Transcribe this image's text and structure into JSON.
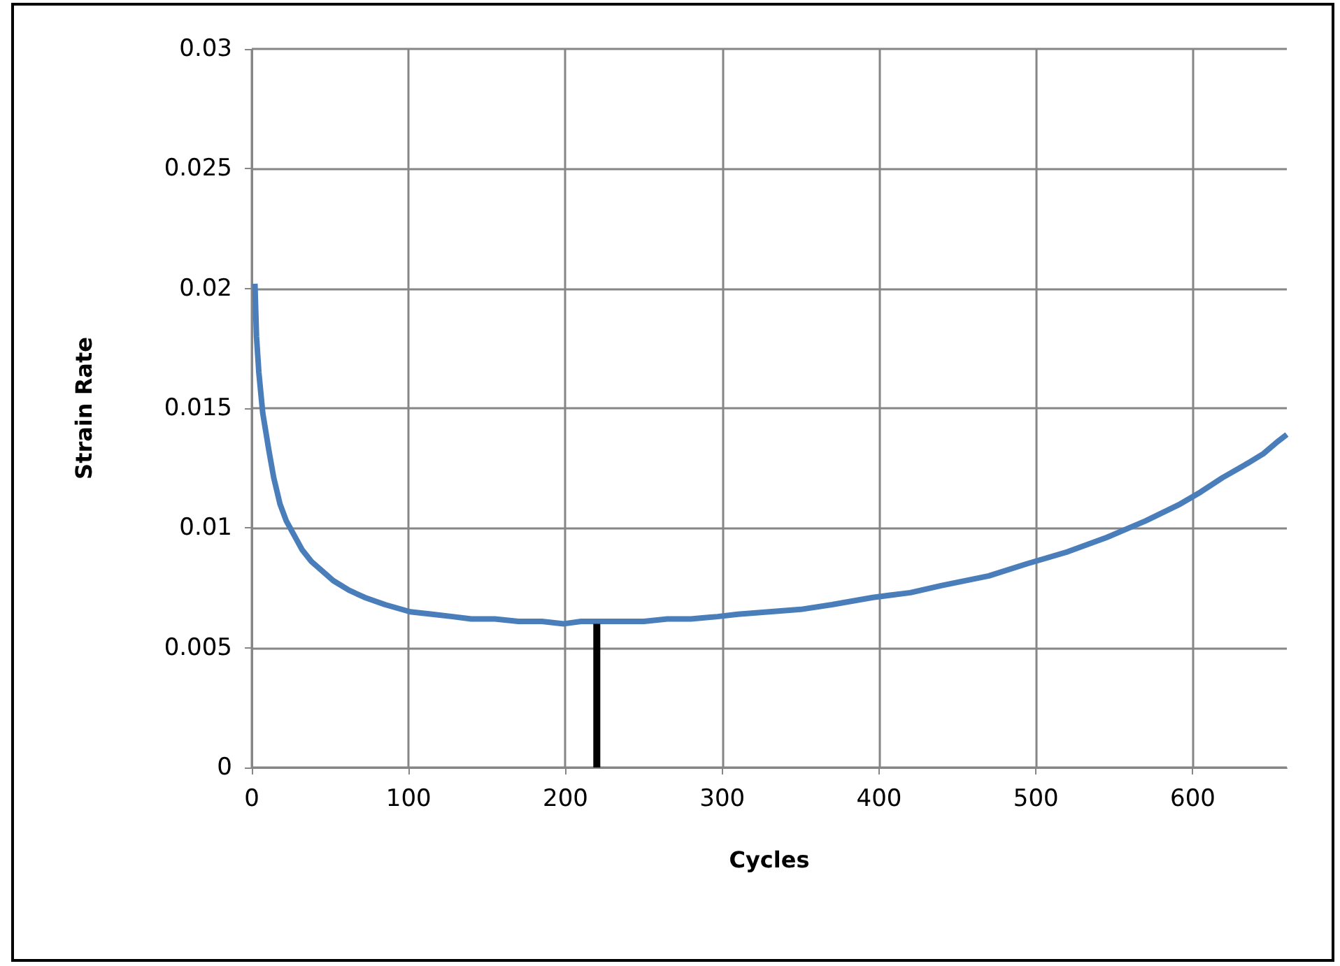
{
  "chart_data": {
    "type": "line",
    "xlabel": "Cycles",
    "ylabel": "Strain Rate",
    "series": [
      {
        "color": "#4a7ebb",
        "x": [
          2,
          3,
          4.5,
          7,
          11,
          14,
          18,
          22,
          27,
          32,
          38,
          45,
          52,
          62,
          72,
          85,
          101,
          115,
          128,
          140,
          155,
          170,
          185,
          199,
          210,
          220,
          235,
          250,
          265,
          280,
          297,
          310,
          330,
          350,
          370,
          396,
          420,
          440,
          470,
          494,
          520,
          545,
          570,
          592,
          605,
          619,
          635,
          645,
          654,
          660
        ],
        "values": [
          0.0202,
          0.018,
          0.0165,
          0.0148,
          0.0132,
          0.0121,
          0.011,
          0.0103,
          0.0097,
          0.0091,
          0.0086,
          0.0082,
          0.0078,
          0.0074,
          0.0071,
          0.0068,
          0.0065,
          0.0064,
          0.0063,
          0.0062,
          0.0062,
          0.0061,
          0.0061,
          0.006,
          0.0061,
          0.0061,
          0.0061,
          0.0061,
          0.0062,
          0.0062,
          0.0063,
          0.0064,
          0.0065,
          0.0066,
          0.0068,
          0.0071,
          0.0073,
          0.0076,
          0.008,
          0.0085,
          0.009,
          0.0096,
          0.0103,
          0.011,
          0.0115,
          0.0121,
          0.0127,
          0.0131,
          0.0136,
          0.0139
        ]
      },
      {
        "color": "#000000",
        "x": [
          220,
          220
        ],
        "values": [
          0,
          0.006
        ]
      }
    ],
    "xlim": [
      0,
      660
    ],
    "xticks": [
      0,
      100,
      200,
      300,
      400,
      500,
      600
    ],
    "ylim": [
      0,
      0.03
    ],
    "yticks": [
      0,
      0.005,
      0.01,
      0.015,
      0.02,
      0.025,
      0.03
    ],
    "grid": true,
    "marker": "none",
    "line_style": "solid"
  }
}
